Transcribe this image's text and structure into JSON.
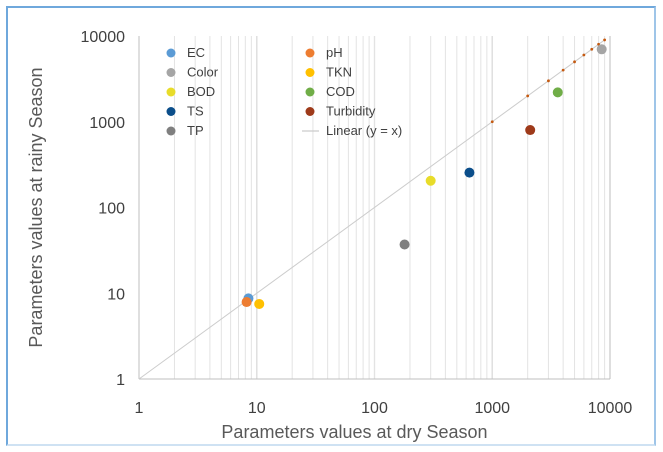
{
  "chart_data": {
    "type": "scatter",
    "title": "",
    "xlabel": "Parameters values at dry Season",
    "ylabel": "Parameters values at rainy Season",
    "xscale": "log",
    "yscale": "log",
    "xlim": [
      1,
      10000
    ],
    "ylim": [
      1,
      10000
    ],
    "xticks": [
      "1",
      "10",
      "100",
      "1000",
      "10000"
    ],
    "yticks": [
      "1",
      "10",
      "100",
      "1000",
      "10000"
    ],
    "grid": "vertical minor and major lines",
    "legend_position": "top-left inside plot",
    "series": [
      {
        "name": "EC",
        "color": "#5b9bd5",
        "x": [
          8.5
        ],
        "y": [
          8.7
        ]
      },
      {
        "name": "pH",
        "color": "#ed7d31",
        "x": [
          8.2
        ],
        "y": [
          7.9
        ]
      },
      {
        "name": "Color",
        "color": "#a5a5a5",
        "x": [
          8500
        ],
        "y": [
          7000
        ]
      },
      {
        "name": "TKN",
        "color": "#ffc000",
        "x": [
          10.5
        ],
        "y": [
          7.5
        ]
      },
      {
        "name": "BOD",
        "color": "#e8dc2a",
        "x": [
          300
        ],
        "y": [
          205
        ]
      },
      {
        "name": "COD",
        "color": "#70ad47",
        "x": [
          3600
        ],
        "y": [
          2200
        ]
      },
      {
        "name": "TS",
        "color": "#0b4e8a",
        "x": [
          640
        ],
        "y": [
          255
        ]
      },
      {
        "name": "Turbidity",
        "color": "#9e3a1a",
        "x": [
          2100
        ],
        "y": [
          800
        ]
      },
      {
        "name": "TP",
        "color": "#7f7f7f",
        "x": [
          180
        ],
        "y": [
          37
        ]
      }
    ],
    "trendline": {
      "name": "Linear (y = x)",
      "color": "#cccccc",
      "from": [
        1,
        1
      ],
      "to": [
        9000,
        9000
      ]
    },
    "minor_markers": {
      "color": "#c55a11",
      "x": [
        1000,
        2000,
        3000,
        4000,
        5000,
        6000,
        7000,
        8000,
        9000
      ]
    }
  }
}
